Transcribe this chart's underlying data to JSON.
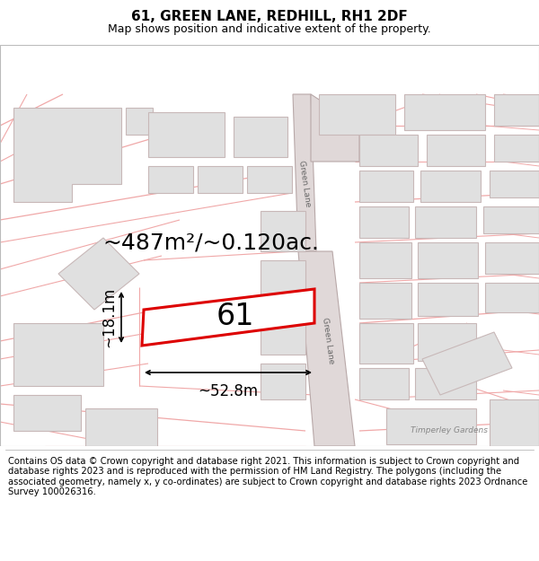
{
  "title": "61, GREEN LANE, REDHILL, RH1 2DF",
  "subtitle": "Map shows position and indicative extent of the property.",
  "footer": "Contains OS data © Crown copyright and database right 2021. This information is subject to Crown copyright and database rights 2023 and is reproduced with the permission of HM Land Registry. The polygons (including the associated geometry, namely x, y co-ordinates) are subject to Crown copyright and database rights 2023 Ordnance Survey 100026316.",
  "area_label": "~487m²/~0.120ac.",
  "width_label": "~52.8m",
  "height_label": "~18.1m",
  "plot_number": "61",
  "bg_color": "#ffffff",
  "map_bg": "#ffffff",
  "road_line_color": "#f0aaaa",
  "road_fill_color": "#e8e0e0",
  "road_stroke": "#d49090",
  "plot_fill": "#ffffff",
  "plot_stroke": "#dd0000",
  "building_fill": "#e0e0e0",
  "building_stroke": "#c8c0c0",
  "title_fontsize": 11,
  "subtitle_fontsize": 9,
  "footer_fontsize": 7.2,
  "label_fontsize": 18,
  "measure_fontsize": 12,
  "plot_num_fontsize": 24,
  "green_lane_label": "Green Lane",
  "timperley_label": "Timperley Gardens"
}
